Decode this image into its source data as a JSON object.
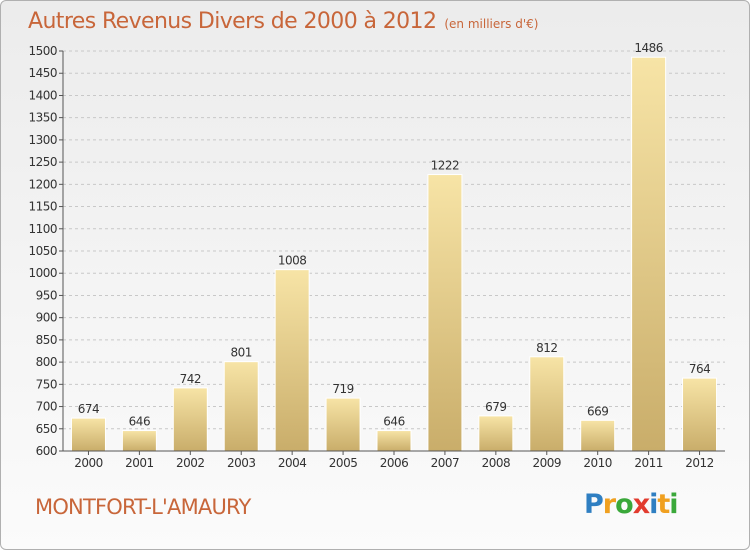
{
  "header": {
    "title": "Autres Revenus Divers de 2000 à 2012",
    "unit_note": "(en milliers d'€)"
  },
  "footer": {
    "commune": "MONTFORT-L'AMAURY",
    "brand": "Proxiti",
    "brand_letters": [
      {
        "ch": "P",
        "color": "#2f7fc2"
      },
      {
        "ch": "r",
        "color": "#f0a020"
      },
      {
        "ch": "o",
        "color": "#3aa83a"
      },
      {
        "ch": "x",
        "color": "#e23b2e"
      },
      {
        "ch": "i",
        "color": "#2f7fc2"
      },
      {
        "ch": "t",
        "color": "#f0a020"
      },
      {
        "ch": "i",
        "color": "#3aa83a"
      }
    ]
  },
  "colors": {
    "title": "#c8663a",
    "bar_light": "#f7e4a6",
    "bar_dark": "#c9ad6a",
    "axis_text": "#333333",
    "grid": "#c8c8c8"
  },
  "chart_data": {
    "type": "bar",
    "title": "Autres Revenus Divers de 2000 à 2012",
    "subtitle": "(en milliers d'€)",
    "categories": [
      "2000",
      "2001",
      "2002",
      "2003",
      "2004",
      "2005",
      "2006",
      "2007",
      "2008",
      "2009",
      "2010",
      "2011",
      "2012"
    ],
    "values": [
      674,
      646,
      742,
      801,
      1008,
      719,
      646,
      1222,
      679,
      812,
      669,
      1486,
      764
    ],
    "data_labels": [
      "674",
      "646",
      "742",
      "801",
      "1008",
      "719",
      "646",
      "1222",
      "679",
      "812",
      "669",
      "1486",
      "764"
    ],
    "ylim": [
      600,
      1500
    ],
    "y_ticks": [
      "600",
      "650",
      "700",
      "750",
      "800",
      "850",
      "900",
      "950",
      "1000",
      "1050",
      "1100",
      "1150",
      "1200",
      "1250",
      "1300",
      "1350",
      "1400",
      "1450",
      "1500"
    ],
    "xlabel": "",
    "ylabel": "",
    "grid": true,
    "legend": "none"
  }
}
